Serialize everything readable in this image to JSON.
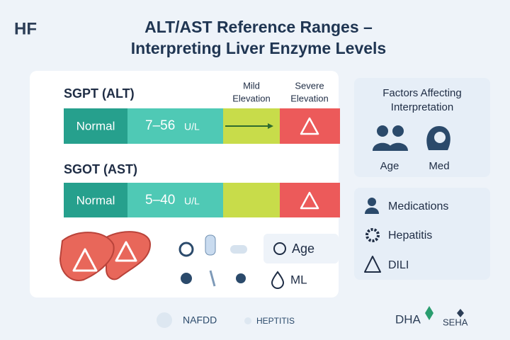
{
  "logo": "HF",
  "header": {
    "title_line1": "ALT/AST Reference Ranges –",
    "title_line2": "Interpreting Liver Enzyme Levels"
  },
  "zones": {
    "mild": [
      "Mild",
      "Elevation"
    ],
    "severe": [
      "Severe",
      "Elevation"
    ]
  },
  "gauges": [
    {
      "label": "SGPT (ALT)",
      "normal": "Normal",
      "range": "7–56",
      "unit": "U/L"
    },
    {
      "label": "SGOT (AST)",
      "normal": "Normal",
      "range": "5–40",
      "unit": "U/L"
    }
  ],
  "tags": {
    "age": "Age",
    "med": "ML"
  },
  "factors": {
    "title": [
      "Factors Affecting",
      "Interpretation"
    ],
    "items": [
      "Age",
      "Med"
    ]
  },
  "list": [
    "Medications",
    "Hepatitis",
    "DILI"
  ],
  "footer": {
    "items": [
      "NAFDD",
      "HEPTITIS"
    ],
    "logos": [
      "DHA",
      "SEHA"
    ]
  }
}
